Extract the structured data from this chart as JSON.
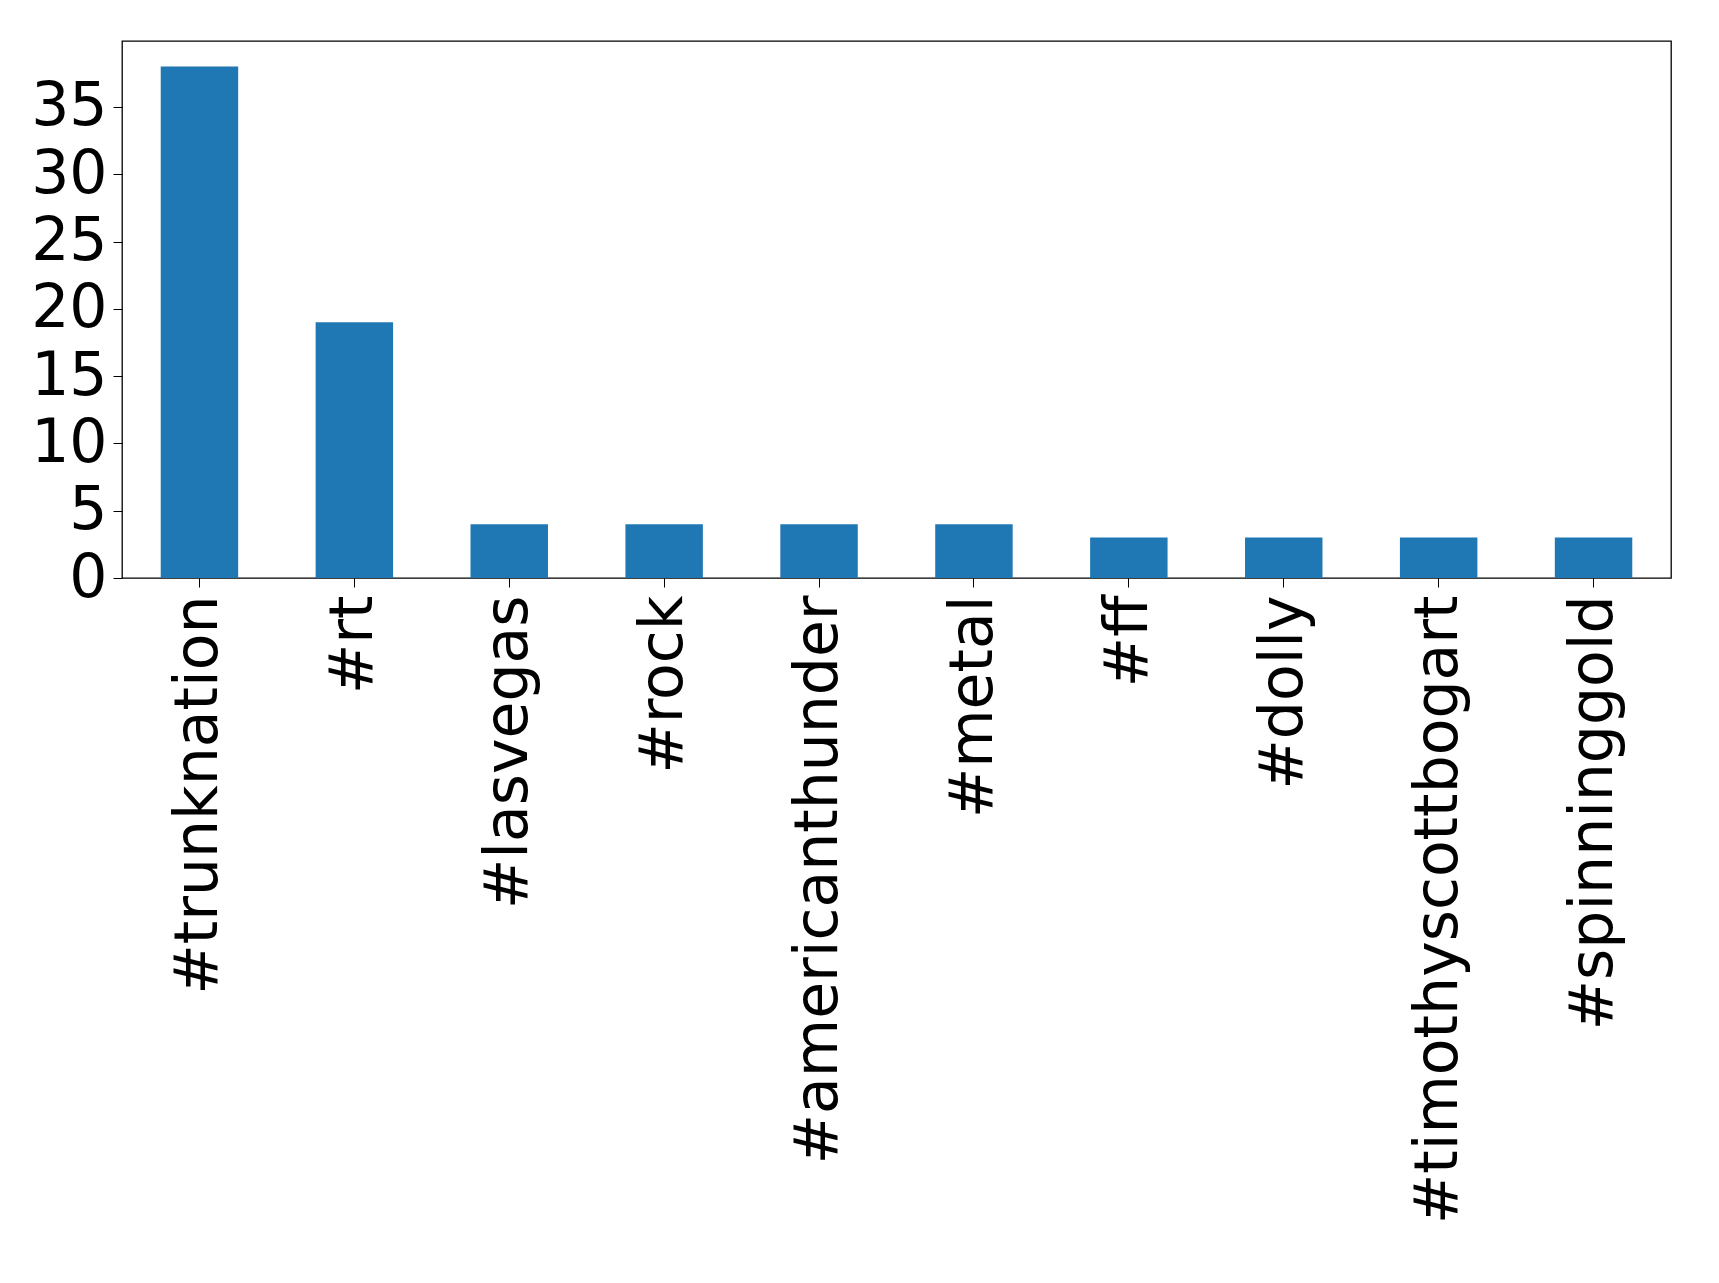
{
  "chart_data": {
    "type": "bar",
    "categories": [
      "#trunknation",
      "#rt",
      "#lasvegas",
      "#rock",
      "#americanthunder",
      "#metal",
      "#ff",
      "#dolly",
      "#timothyscottbogart",
      "#spinninggold"
    ],
    "values": [
      38,
      19,
      4,
      4,
      4,
      4,
      3,
      3,
      3,
      3
    ],
    "color": "#1f77b4",
    "ylim": [
      0,
      39.9
    ],
    "yticks": [
      0,
      5,
      10,
      15,
      20,
      25,
      30,
      35
    ],
    "grid": false
  }
}
